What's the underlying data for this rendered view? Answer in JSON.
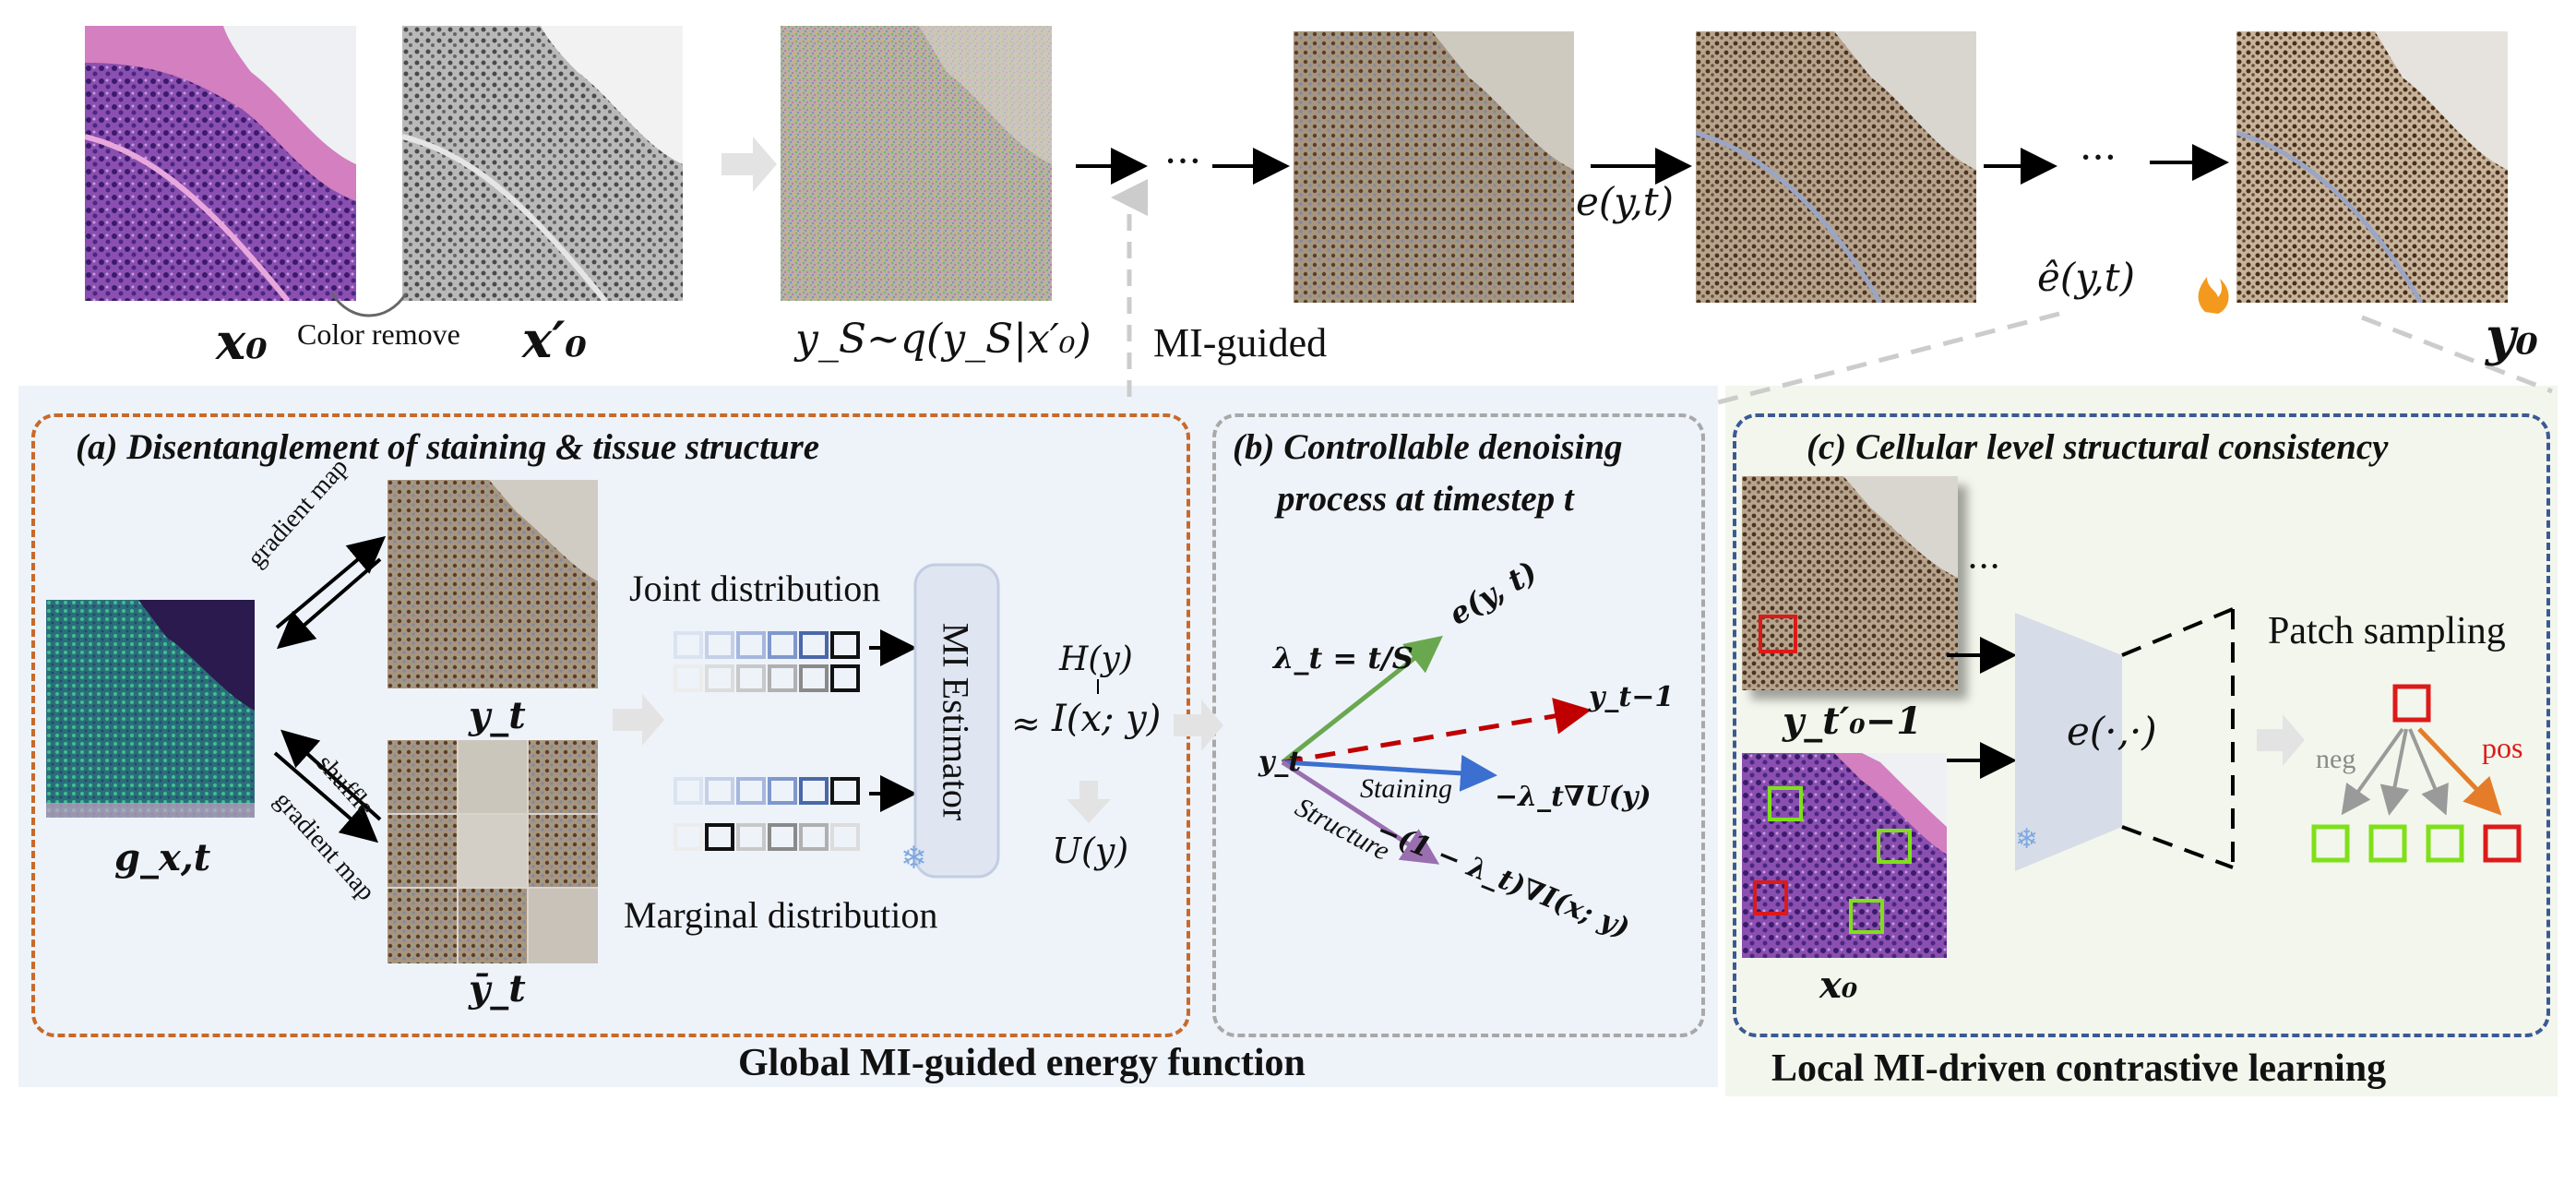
{
  "top": {
    "x0": "x₀",
    "x0_prime": "x′₀",
    "color_remove": "Color remove",
    "ys_formula": "y_S~q(y_S|x′₀)",
    "dots": "···",
    "e_yt": "e(y,t)",
    "ehat_yt": "ê(y,t)",
    "mi_guided": "MI-guided",
    "y0": "y₀"
  },
  "panel_a": {
    "title": "(a) Disentanglement of staining & tissue structure",
    "gradient_map_1": "gradient map",
    "shuffle": "shuffle",
    "gradient_map_2": "gradient map",
    "g_label": "g_x,t",
    "yt_label": "y_t",
    "ybar_label": "ȳ_t",
    "joint": "Joint distribution",
    "marginal": "Marginal distribution",
    "estimator": "MI Estimator",
    "h_y": "H(y)",
    "approx": "≈",
    "i_xy": "I(x; y)",
    "u_y": "U(y)"
  },
  "panel_b": {
    "title_line1": "(b) Controllable denoising",
    "title_line2": "process at timestep t",
    "lambda": "λ_t = t/S",
    "e_yt": "e(y, t)",
    "y_t1": "y_t−1",
    "yt": "y_t",
    "staining": "Staining",
    "stain_term": "−λ_t∇U(y)",
    "structure": "Structure",
    "struct_term": "−(1 − λ_t)∇I(x; y)"
  },
  "panel_c": {
    "title": "(c) Cellular level structural consistency",
    "dots": "···",
    "y_label": "y_t′₀−1",
    "x0_label": "x₀",
    "encoder": "e(·,·)",
    "patch_sampling": "Patch sampling",
    "neg": "neg",
    "pos": "pos"
  },
  "footer": {
    "global": "Global MI-guided energy function",
    "local": "Local MI-driven contrastive learning"
  },
  "colors": {
    "orange_box": "#c8692a",
    "gray_box": "#a8a8a8",
    "blue_box": "#3a5a95",
    "panel_bg_left": "#eef3fa",
    "panel_bg_right": "#f3f6ec",
    "pos_red": "#dd1a1a",
    "neg_green": "#7fe01a",
    "arrow_green": "#6aa84f",
    "arrow_red": "#c00000",
    "arrow_blue": "#3b6fd0",
    "arrow_purple": "#9a6fb0"
  }
}
